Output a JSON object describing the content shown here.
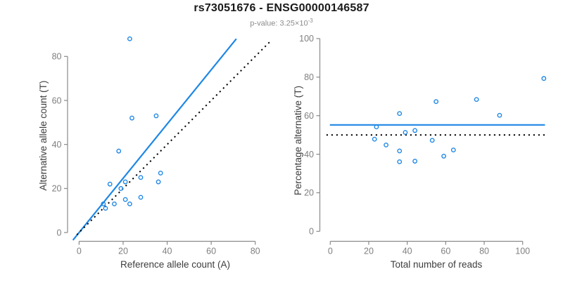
{
  "header": {
    "title": "rs73051676 - ENSG00000146587",
    "subtitle_label": "p-value: ",
    "subtitle_value": "3.25×10",
    "subtitle_exponent": "-3"
  },
  "colors": {
    "accent_blue": "#1E87E5",
    "dotted_line": "#000000",
    "axis_line": "#8a8a8a",
    "tick_label": "#7f7f7f",
    "axis_title": "#3d3d3d",
    "title_text": "#1a1a1a",
    "subtitle_text": "#8c8c8c"
  },
  "chart_data": [
    {
      "type": "scatter",
      "name": "allele-counts",
      "xlabel": "Reference allele count (A)",
      "ylabel": "Alternative allele count (T)",
      "xlim": [
        0,
        80
      ],
      "ylim": [
        0,
        80
      ],
      "xticks": [
        0,
        20,
        40,
        60,
        80
      ],
      "yticks": [
        0,
        20,
        40,
        60,
        80
      ],
      "grid": false,
      "legend": "none",
      "points": [
        [
          12,
          11
        ],
        [
          11,
          13
        ],
        [
          16,
          13
        ],
        [
          14,
          22
        ],
        [
          21,
          15
        ],
        [
          23,
          13
        ],
        [
          19,
          20
        ],
        [
          21,
          23
        ],
        [
          28,
          16
        ],
        [
          28,
          25
        ],
        [
          18,
          37
        ],
        [
          36,
          23
        ],
        [
          37,
          27
        ],
        [
          24,
          52
        ],
        [
          35,
          53
        ],
        [
          23,
          88
        ]
      ],
      "lines": [
        {
          "kind": "slope",
          "slope": 1.232,
          "intercept": 0,
          "style": "solid",
          "color_key": "accent_blue",
          "x_range": [
            -2.8,
            71.4
          ]
        },
        {
          "kind": "slope",
          "slope": 1.0,
          "intercept": 0,
          "style": "dotted",
          "color_key": "dotted_line",
          "x_range": [
            -1,
            87.4
          ]
        }
      ]
    },
    {
      "type": "scatter",
      "name": "percentage-vs-reads",
      "xlabel": "Total number of reads",
      "ylabel": "Percentage alternative (T)",
      "xlim": [
        0,
        100
      ],
      "ylim": [
        0,
        100
      ],
      "xticks": [
        0,
        20,
        40,
        60,
        80,
        100
      ],
      "yticks": [
        0,
        20,
        40,
        60,
        80,
        100
      ],
      "grid": false,
      "legend": "none",
      "points": [
        [
          23,
          47.8
        ],
        [
          24,
          54.2
        ],
        [
          29,
          44.8
        ],
        [
          36,
          61.1
        ],
        [
          36,
          41.7
        ],
        [
          36,
          36.1
        ],
        [
          39,
          51.3
        ],
        [
          44,
          52.3
        ],
        [
          44,
          36.4
        ],
        [
          53,
          47.2
        ],
        [
          55,
          67.3
        ],
        [
          59,
          39.0
        ],
        [
          64,
          42.2
        ],
        [
          76,
          68.4
        ],
        [
          88,
          60.2
        ],
        [
          111,
          79.3
        ]
      ],
      "lines": [
        {
          "kind": "hline",
          "y": 55.2,
          "style": "solid",
          "color_key": "accent_blue",
          "x_range": [
            -0.2,
            111.6
          ]
        },
        {
          "kind": "hline",
          "y": 50.0,
          "style": "dotted",
          "color_key": "dotted_line",
          "x_range": [
            -2,
            111.5
          ]
        }
      ]
    }
  ]
}
